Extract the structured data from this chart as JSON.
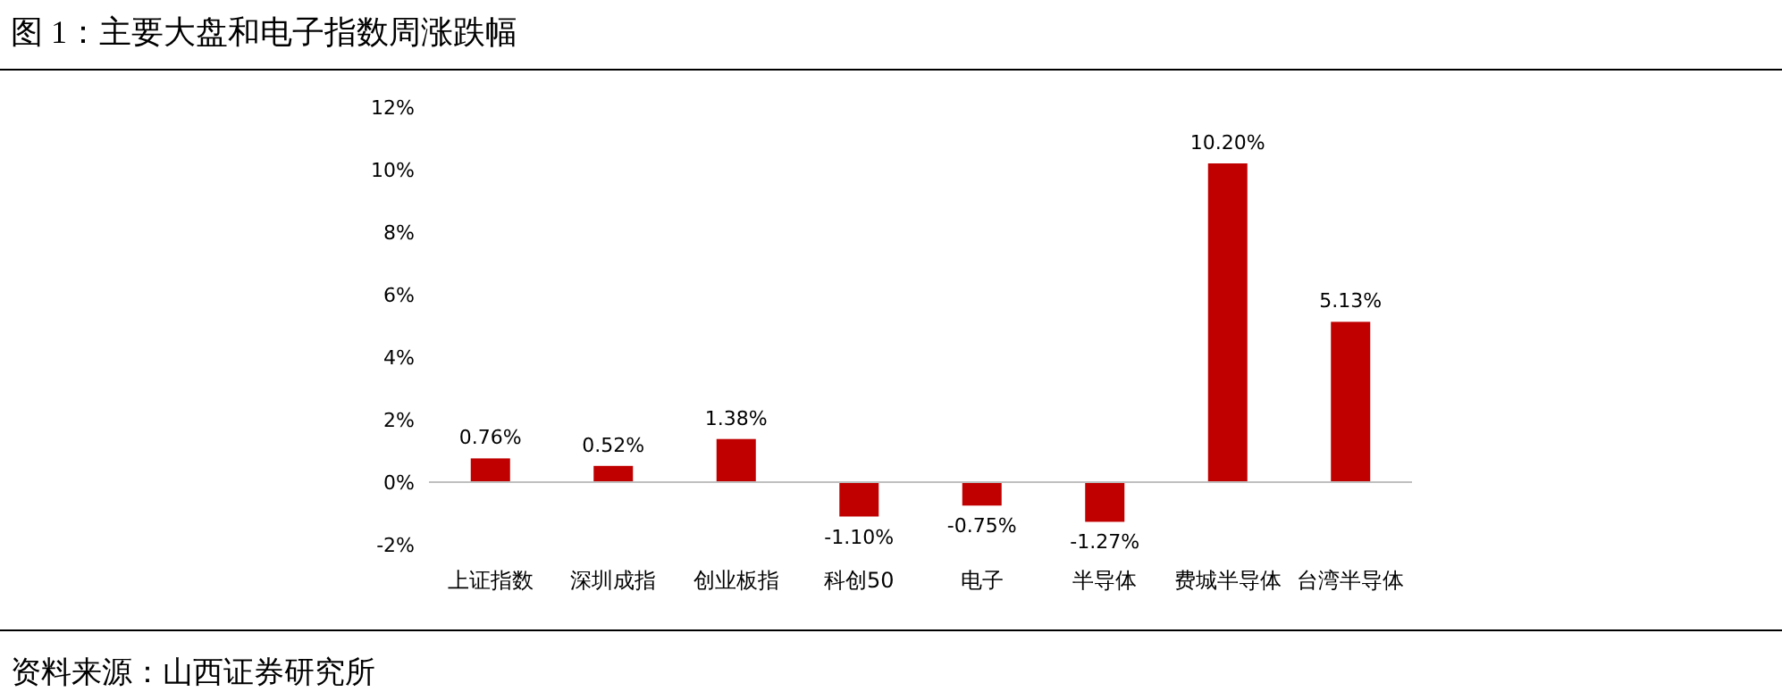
{
  "chart_data": {
    "type": "bar",
    "title": "图 1：主要大盘和电子指数周涨跌幅",
    "categories": [
      "上证指数",
      "深圳成指",
      "创业板指",
      "科创50",
      "电子",
      "半导体",
      "费城半导体",
      "台湾半导体"
    ],
    "values": [
      0.76,
      0.52,
      1.38,
      -1.1,
      -0.75,
      -1.27,
      10.2,
      5.13
    ],
    "value_labels": [
      "0.76%",
      "0.52%",
      "1.38%",
      "-1.10%",
      "-0.75%",
      "-1.27%",
      "10.20%",
      "5.13%"
    ],
    "color": "#c00000",
    "ylim": [
      -2,
      12
    ],
    "yticks": [
      {
        "value": -2,
        "label": "-2%"
      },
      {
        "value": 0,
        "label": "0%"
      },
      {
        "value": 2,
        "label": "2%"
      },
      {
        "value": 4,
        "label": "4%"
      },
      {
        "value": 6,
        "label": "6%"
      },
      {
        "value": 8,
        "label": "8%"
      },
      {
        "value": 10,
        "label": "10%"
      },
      {
        "value": 12,
        "label": "12%"
      }
    ],
    "annotations": [
      "资料来源：山西证券研究所"
    ]
  }
}
